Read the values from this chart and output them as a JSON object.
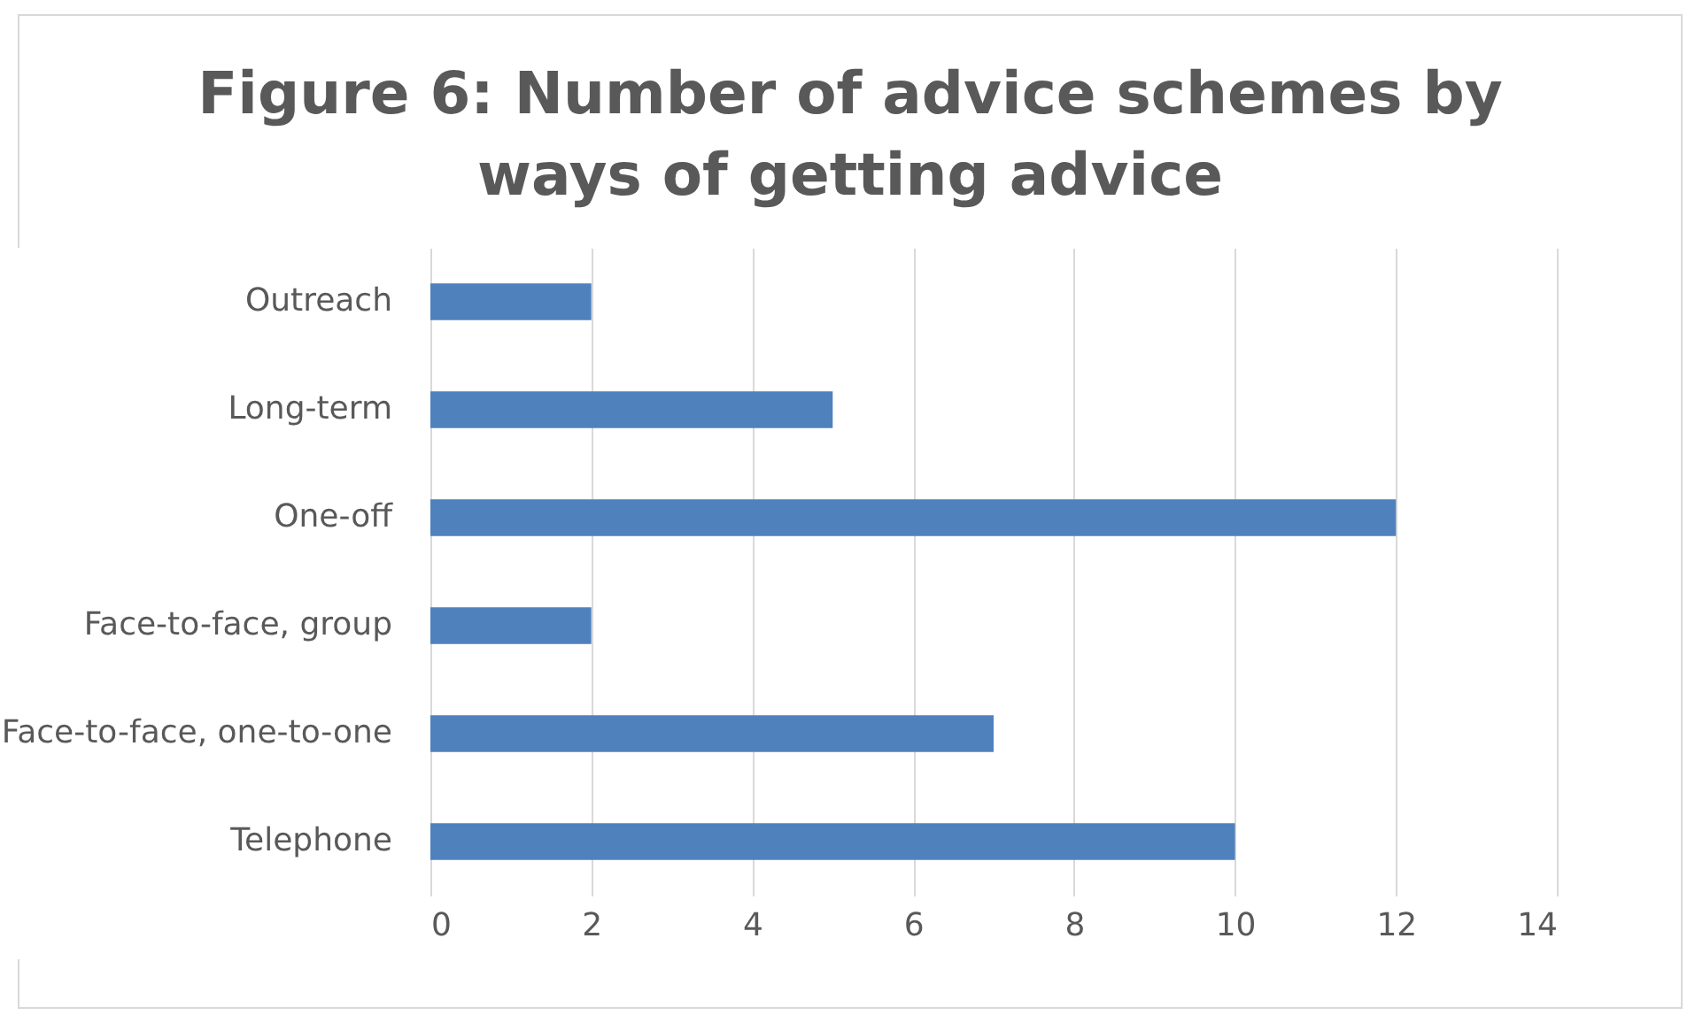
{
  "chart_data": {
    "type": "bar",
    "orientation": "horizontal",
    "title": "Figure 6: Number of advice schemes by ways of getting advice",
    "categories": [
      "Outreach",
      "Long-term",
      "One-off",
      "Face-to-face, group",
      "Face-to-face, one-to-one",
      "Telephone"
    ],
    "values": [
      2,
      5,
      12,
      2,
      7,
      10
    ],
    "color": "#4f81bd",
    "xlim": [
      0,
      14
    ],
    "xticks": [
      0,
      2,
      4,
      6,
      8,
      10,
      12,
      14
    ],
    "grid": "x"
  }
}
